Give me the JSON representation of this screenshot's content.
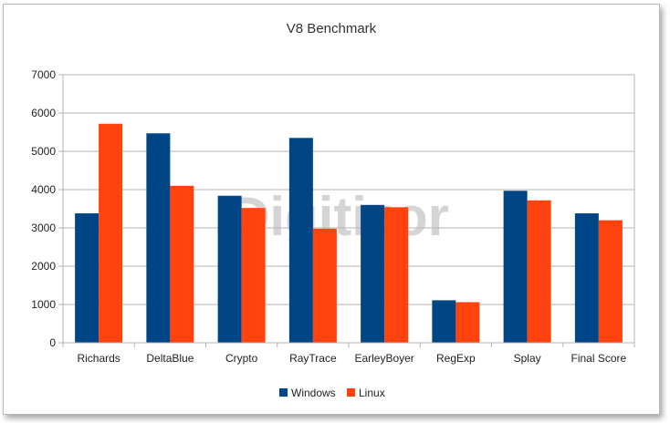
{
  "chart_data": {
    "type": "bar",
    "title": "V8 Benchmark",
    "xlabel": "",
    "ylabel": "",
    "ylim": [
      0,
      7000
    ],
    "yticks": [
      0,
      1000,
      2000,
      3000,
      4000,
      5000,
      6000,
      7000
    ],
    "grid": true,
    "legend_position": "bottom",
    "categories": [
      "Richards",
      "DeltaBlue",
      "Crypto",
      "RayTrace",
      "EarleyBoyer",
      "RegExp",
      "Splay",
      "Final Score"
    ],
    "series": [
      {
        "name": "Windows",
        "color": "#004586",
        "values": [
          3380,
          5470,
          3840,
          5350,
          3600,
          1110,
          3970,
          3380
        ]
      },
      {
        "name": "Linux",
        "color": "#ff420e",
        "values": [
          5720,
          4100,
          3520,
          2980,
          3540,
          1060,
          3720,
          3200
        ]
      }
    ],
    "watermark": "Digitizor"
  }
}
